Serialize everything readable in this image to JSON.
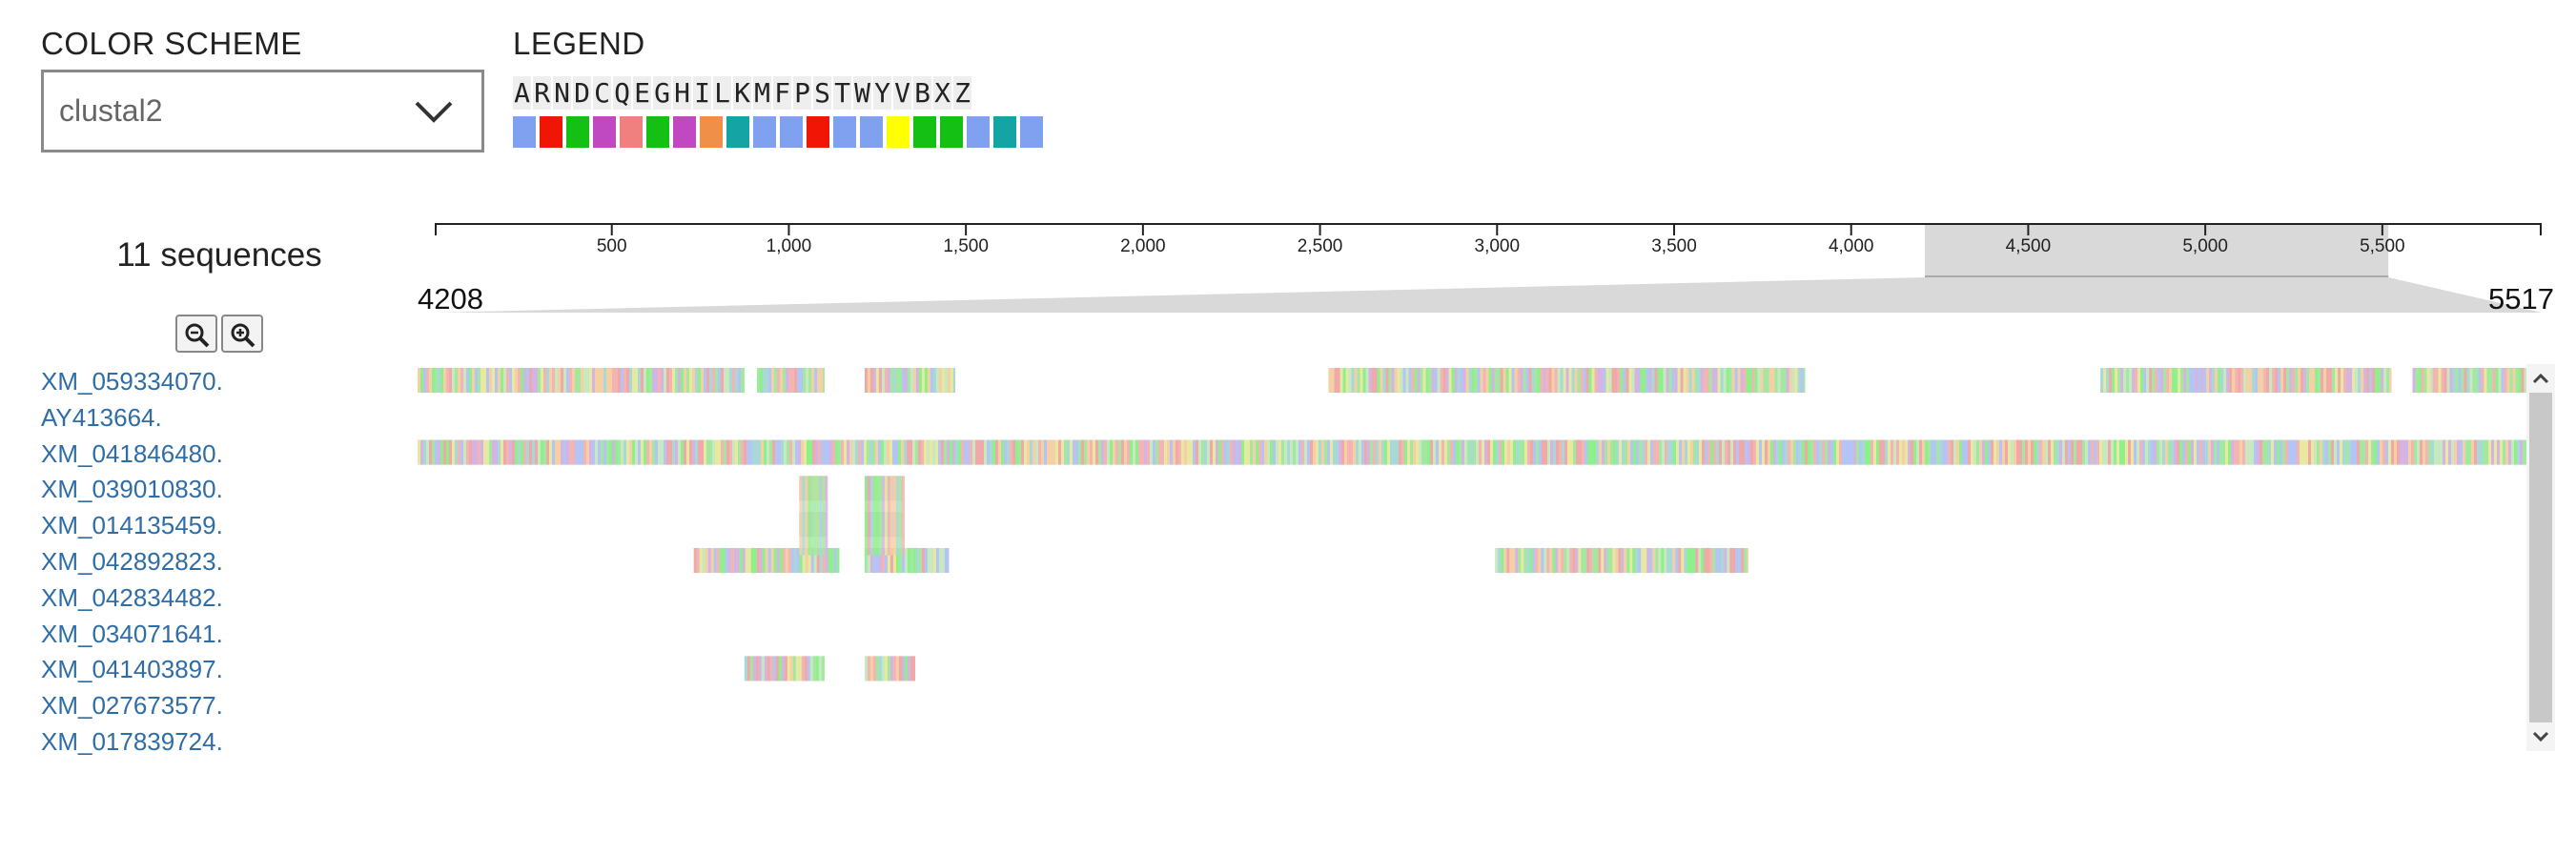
{
  "color_scheme": {
    "label": "COLOR SCHEME",
    "selected": "clustal2"
  },
  "legend": {
    "label": "LEGEND",
    "letters": [
      "A",
      "R",
      "N",
      "D",
      "C",
      "Q",
      "E",
      "G",
      "H",
      "I",
      "L",
      "K",
      "M",
      "F",
      "P",
      "S",
      "T",
      "W",
      "Y",
      "V",
      "B",
      "X",
      "Z"
    ],
    "colors": [
      "#80a0f0",
      "#f01505",
      "#15c015",
      "#c048c0",
      "#f08080",
      "#15c015",
      "#c048c0",
      "#f09048",
      "#15a4a4",
      "#80a0f0",
      "#80a0f0",
      "#f01505",
      "#80a0f0",
      "#80a0f0",
      "#ffff00",
      "#15c015",
      "#15c015",
      "#80a0f0",
      "#15a4a4",
      "#80a0f0"
    ]
  },
  "viewer": {
    "sequence_count": "11 sequences",
    "axis_ticks": [
      "500",
      "1,000",
      "1,500",
      "2,000",
      "2,500",
      "3,000",
      "3,500",
      "4,000",
      "4,500",
      "5,000",
      "5,500"
    ],
    "axis_max": 5950,
    "range_start_label": "4208",
    "range_end_label": "5517",
    "range_start": 4208,
    "range_end": 5517,
    "zoom_out_icon": "zoom-out-icon",
    "zoom_in_icon": "zoom-in-icon"
  },
  "sequences": [
    {
      "name": "XM_059334070.",
      "segments": [
        [
          0.0,
          0.155
        ],
        [
          0.161,
          0.193
        ],
        [
          0.212,
          0.255
        ],
        [
          0.432,
          0.658
        ],
        [
          0.798,
          0.936
        ],
        [
          0.946,
          1.0
        ]
      ]
    },
    {
      "name": "AY413664.",
      "segments": []
    },
    {
      "name": "XM_041846480.",
      "segments": [
        [
          0.0,
          1.0
        ]
      ]
    },
    {
      "name": "XM_039010830.",
      "segments": [
        [
          0.181,
          0.194
        ],
        [
          0.212,
          0.23
        ]
      ]
    },
    {
      "name": "XM_014135459.",
      "segments": [
        [
          0.181,
          0.194
        ],
        [
          0.212,
          0.23
        ]
      ]
    },
    {
      "name": "XM_042892823.",
      "segments": [
        [
          0.131,
          0.2
        ],
        [
          0.212,
          0.252
        ],
        [
          0.511,
          0.631
        ]
      ]
    },
    {
      "name": "XM_042834482.",
      "segments": []
    },
    {
      "name": "XM_034071641.",
      "segments": []
    },
    {
      "name": "XM_041403897.",
      "segments": [
        [
          0.155,
          0.193
        ],
        [
          0.212,
          0.236
        ]
      ]
    },
    {
      "name": "XM_027673577.",
      "segments": []
    },
    {
      "name": "XM_017839724.",
      "segments": []
    }
  ],
  "icons": {
    "dropdown": "chevron-down-icon",
    "scroll_up": "scroll-up-icon",
    "scroll_down": "scroll-down-icon"
  }
}
